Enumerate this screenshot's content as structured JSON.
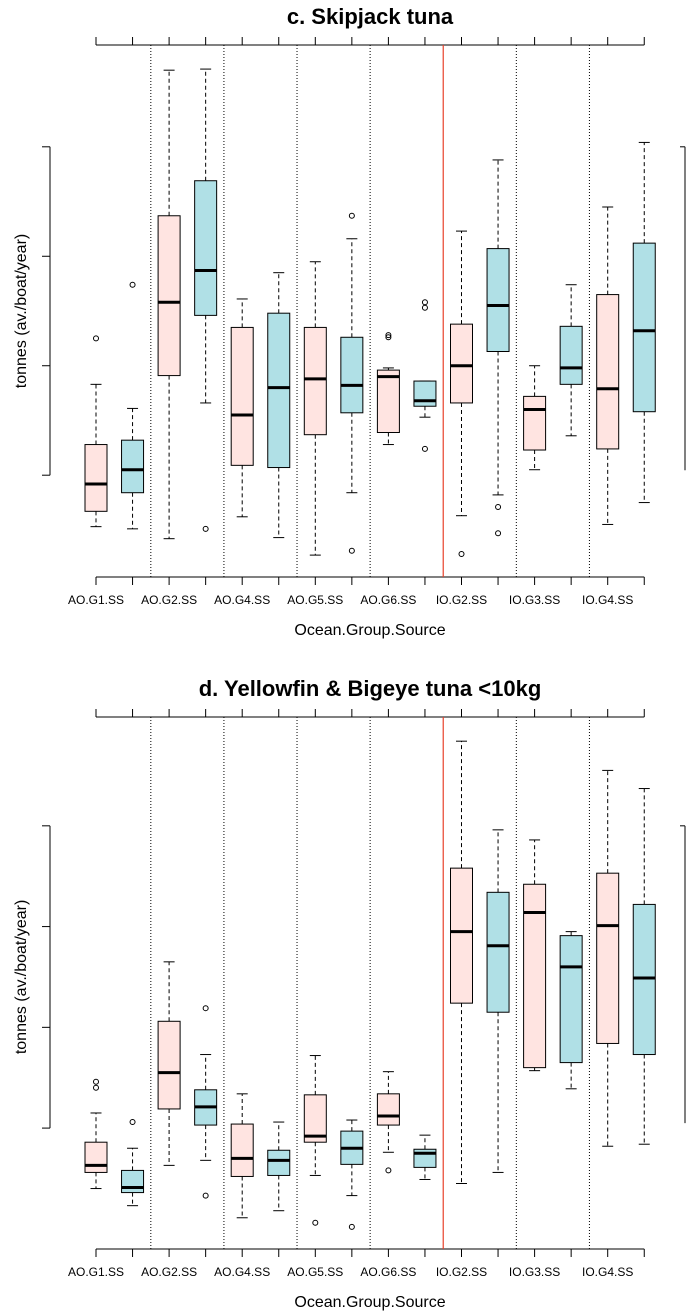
{
  "chart_data": [
    {
      "type": "box",
      "title": "c. Skipjack tuna",
      "xlabel": "Ocean.Group.Source",
      "ylabel": "tonnes (av./boat/year)",
      "categories": [
        "AO.G1.SS",
        null,
        "AO.G2.SS",
        null,
        "AO.G4.SS",
        null,
        "AO.G5.SS",
        null,
        "AO.G6.SS",
        null,
        "IO.G2.SS",
        null,
        "IO.G3.SS",
        null,
        "IO.G4.SS",
        null
      ],
      "box_colors": [
        "#ffe4e1",
        "#b0e0e6"
      ],
      "ylim": [
        -0.93,
        3.93
      ],
      "yticks": [
        0,
        1,
        2,
        3
      ],
      "boxes": [
        {
          "whislo": -0.47,
          "q1": -0.33,
          "med": -0.08,
          "q3": 0.28,
          "whishi": 0.83,
          "fliers": [
            1.25
          ]
        },
        {
          "whislo": -0.49,
          "q1": -0.16,
          "med": 0.05,
          "q3": 0.32,
          "whishi": 0.61,
          "fliers": [
            1.74
          ]
        },
        {
          "whislo": -0.58,
          "q1": 0.91,
          "med": 1.58,
          "q3": 2.37,
          "whishi": 3.7,
          "fliers": []
        },
        {
          "whislo": 0.66,
          "q1": 1.46,
          "med": 1.87,
          "q3": 2.69,
          "whishi": 3.71,
          "fliers": [
            -0.49
          ]
        },
        {
          "whislo": -0.38,
          "q1": 0.09,
          "med": 0.55,
          "q3": 1.35,
          "whishi": 1.61,
          "fliers": []
        },
        {
          "whislo": -0.57,
          "q1": 0.07,
          "med": 0.8,
          "q3": 1.48,
          "whishi": 1.85,
          "fliers": []
        },
        {
          "whislo": -0.73,
          "q1": 0.37,
          "med": 0.88,
          "q3": 1.35,
          "whishi": 1.95,
          "fliers": []
        },
        {
          "whislo": -0.16,
          "q1": 0.57,
          "med": 0.82,
          "q3": 1.26,
          "whishi": 2.16,
          "fliers": [
            2.37,
            -0.69
          ]
        },
        {
          "whislo": 0.28,
          "q1": 0.39,
          "med": 0.9,
          "q3": 0.96,
          "whishi": 0.98,
          "fliers": [
            1.28,
            1.26
          ]
        },
        {
          "whislo": 0.53,
          "q1": 0.63,
          "med": 0.68,
          "q3": 0.86,
          "whishi": 0.86,
          "fliers": [
            1.58,
            1.53,
            0.24
          ]
        },
        {
          "whislo": -0.37,
          "q1": 0.66,
          "med": 1.0,
          "q3": 1.38,
          "whishi": 2.23,
          "fliers": [
            -0.72
          ]
        },
        {
          "whislo": -0.18,
          "q1": 1.13,
          "med": 1.55,
          "q3": 2.07,
          "whishi": 2.88,
          "fliers": [
            -0.29,
            -0.53
          ]
        },
        {
          "whislo": 0.05,
          "q1": 0.23,
          "med": 0.6,
          "q3": 0.72,
          "whishi": 1.0,
          "fliers": []
        },
        {
          "whislo": 0.36,
          "q1": 0.83,
          "med": 0.98,
          "q3": 1.36,
          "whishi": 1.74,
          "fliers": []
        },
        {
          "whislo": -0.45,
          "q1": 0.24,
          "med": 0.79,
          "q3": 1.65,
          "whishi": 2.45,
          "fliers": []
        },
        {
          "whislo": -0.25,
          "q1": 0.58,
          "med": 1.32,
          "q3": 2.12,
          "whishi": 3.04,
          "fliers": []
        }
      ]
    },
    {
      "type": "box",
      "title": "d. Yellowfin & Bigeye tuna <10kg",
      "xlabel": "Ocean.Group.Source",
      "ylabel": "tonnes (av./boat/year)",
      "categories": [
        "AO.G1.SS",
        null,
        "AO.G2.SS",
        null,
        "AO.G4.SS",
        null,
        "AO.G5.SS",
        null,
        "AO.G6.SS",
        null,
        "IO.G2.SS",
        null,
        "IO.G3.SS",
        null,
        "IO.G4.SS",
        null
      ],
      "box_colors": [
        "#ffe4e1",
        "#b0e0e6"
      ],
      "ylim": [
        -1.2,
        4.08
      ],
      "yticks": [
        0,
        1,
        2,
        3
      ],
      "boxes": [
        {
          "whislo": -0.6,
          "q1": -0.44,
          "med": -0.37,
          "q3": -0.14,
          "whishi": 0.15,
          "fliers": [
            0.46,
            0.4
          ]
        },
        {
          "whislo": -0.77,
          "q1": -0.64,
          "med": -0.59,
          "q3": -0.42,
          "whishi": -0.2,
          "fliers": [
            0.06
          ]
        },
        {
          "whislo": -0.37,
          "q1": 0.19,
          "med": 0.55,
          "q3": 1.06,
          "whishi": 1.65,
          "fliers": []
        },
        {
          "whislo": -0.32,
          "q1": 0.03,
          "med": 0.21,
          "q3": 0.38,
          "whishi": 0.73,
          "fliers": [
            1.19,
            -0.67
          ]
        },
        {
          "whislo": -0.89,
          "q1": -0.48,
          "med": -0.3,
          "q3": 0.04,
          "whishi": 0.34,
          "fliers": []
        },
        {
          "whislo": -0.82,
          "q1": -0.47,
          "med": -0.32,
          "q3": -0.22,
          "whishi": 0.06,
          "fliers": []
        },
        {
          "whislo": -0.47,
          "q1": -0.14,
          "med": -0.08,
          "q3": 0.33,
          "whishi": 0.72,
          "fliers": [
            -0.94
          ]
        },
        {
          "whislo": -0.67,
          "q1": -0.36,
          "med": -0.2,
          "q3": -0.03,
          "whishi": 0.08,
          "fliers": [
            -0.98
          ]
        },
        {
          "whislo": -0.24,
          "q1": 0.03,
          "med": 0.12,
          "q3": 0.34,
          "whishi": 0.56,
          "fliers": [
            -0.42
          ]
        },
        {
          "whislo": -0.51,
          "q1": -0.39,
          "med": -0.25,
          "q3": -0.21,
          "whishi": -0.07,
          "fliers": []
        },
        {
          "whislo": -0.55,
          "q1": 1.24,
          "med": 1.95,
          "q3": 2.58,
          "whishi": 3.84,
          "fliers": []
        },
        {
          "whislo": -0.44,
          "q1": 1.15,
          "med": 1.81,
          "q3": 2.34,
          "whishi": 2.96,
          "fliers": []
        },
        {
          "whislo": 0.57,
          "q1": 0.6,
          "med": 2.14,
          "q3": 2.42,
          "whishi": 2.86,
          "fliers": []
        },
        {
          "whislo": 0.39,
          "q1": 0.65,
          "med": 1.6,
          "q3": 1.91,
          "whishi": 1.95,
          "fliers": []
        },
        {
          "whislo": -0.18,
          "q1": 0.84,
          "med": 2.01,
          "q3": 2.53,
          "whishi": 3.55,
          "fliers": []
        },
        {
          "whislo": -0.16,
          "q1": 0.73,
          "med": 1.49,
          "q3": 2.22,
          "whishi": 3.37,
          "fliers": []
        }
      ]
    }
  ]
}
